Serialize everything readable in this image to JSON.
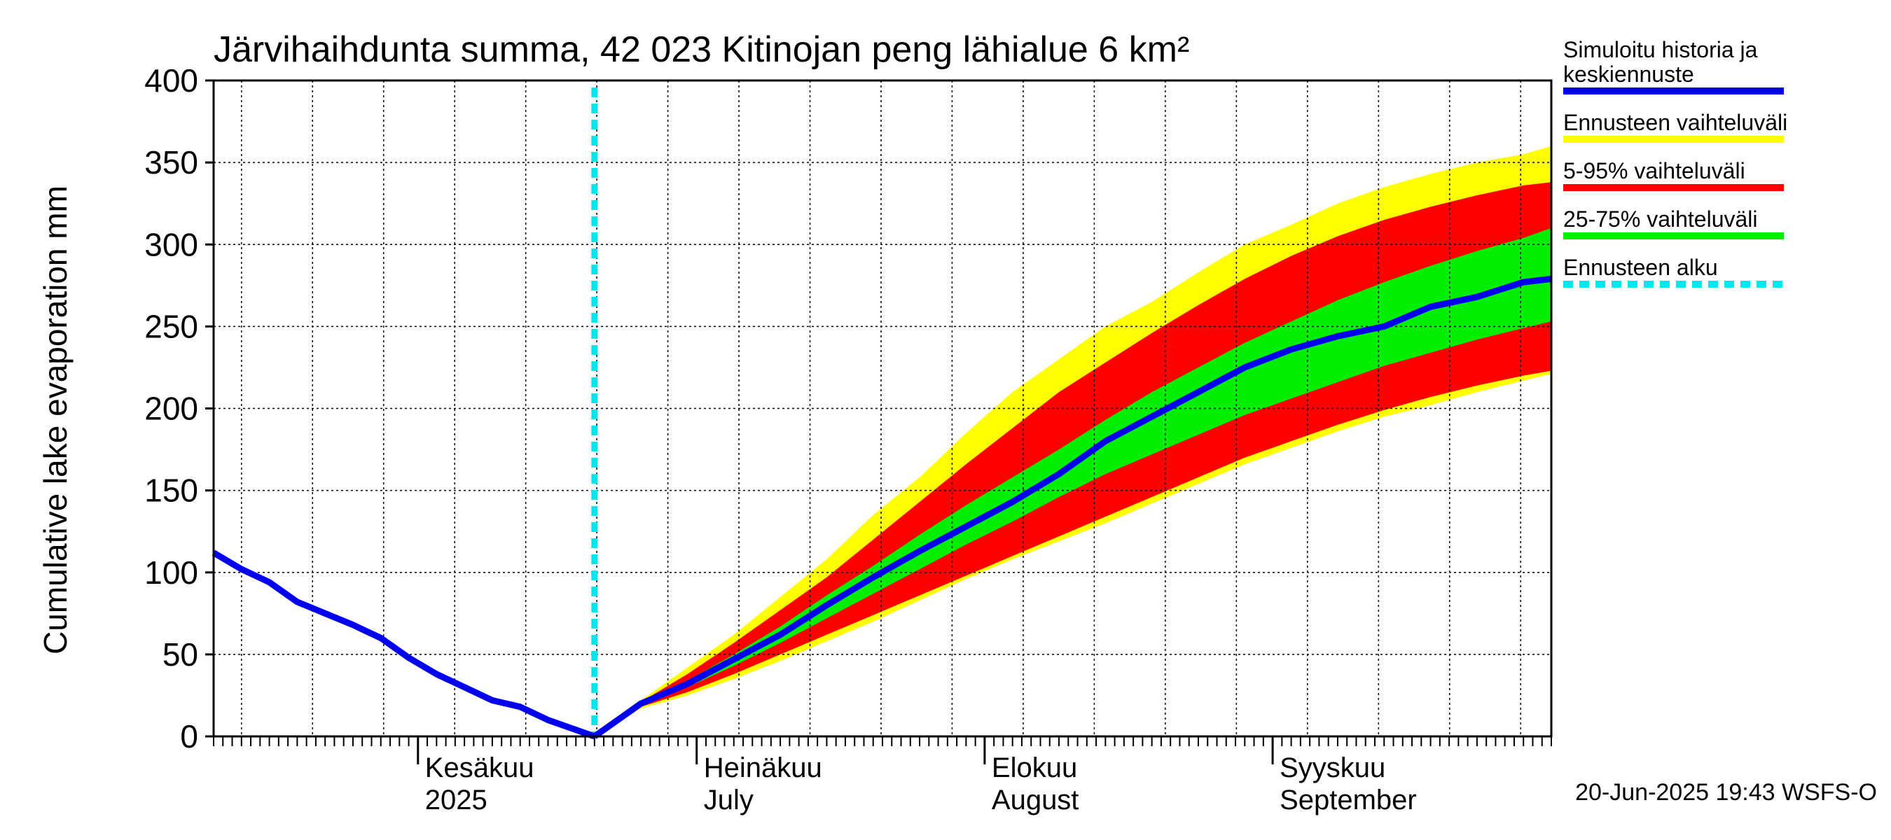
{
  "chart_data": {
    "type": "area",
    "title": "Järvihaihdunta summa, 42 023 Kitinojan peng lähialue 6 km²",
    "ylabel": "Cumulative lake evaporation   mm",
    "xlabel": "",
    "ylim": [
      0,
      400
    ],
    "yticks": [
      0,
      50,
      100,
      150,
      200,
      250,
      300,
      350,
      400
    ],
    "grid": true,
    "legend_position": "right",
    "x_unit": "day of year 2025",
    "xlim": [
      130,
      274
    ],
    "forecast_start": 171,
    "month_labels": [
      {
        "day": 152,
        "line1": "Kesäkuu",
        "line2": "2025"
      },
      {
        "day": 182,
        "line1": "Heinäkuu",
        "line2": "July"
      },
      {
        "day": 213,
        "line1": "Elokuu",
        "line2": "August"
      },
      {
        "day": 244,
        "line1": "Syyskuu",
        "line2": "September"
      }
    ],
    "legend": [
      {
        "label_lines": [
          "Simuloitu historia ja",
          "keskiennuste"
        ],
        "color": "#0000ee",
        "style": "solid"
      },
      {
        "label_lines": [
          "Ennusteen vaihteluväli"
        ],
        "color": "#ffff00",
        "style": "solid"
      },
      {
        "label_lines": [
          "5-95% vaihteluväli"
        ],
        "color": "#ff0000",
        "style": "solid"
      },
      {
        "label_lines": [
          "25-75% vaihteluväli"
        ],
        "color": "#00ee00",
        "style": "solid"
      },
      {
        "label_lines": [
          "Ennusteen alku"
        ],
        "color": "#00e5ee",
        "style": "dashed"
      }
    ],
    "history": {
      "x": [
        130,
        133,
        136,
        139,
        142,
        145,
        148,
        151,
        154,
        157,
        160,
        163,
        166,
        169,
        171
      ],
      "y": [
        112,
        102,
        94,
        82,
        75,
        68,
        60,
        48,
        38,
        30,
        22,
        18,
        10,
        4,
        0
      ]
    },
    "forecast": {
      "x": [
        171,
        176,
        181,
        186,
        191,
        196,
        201,
        206,
        211,
        216,
        221,
        226,
        231,
        236,
        241,
        246,
        251,
        256,
        261,
        266,
        271,
        274
      ],
      "median": [
        0,
        20,
        32,
        47,
        62,
        80,
        97,
        113,
        128,
        143,
        160,
        180,
        195,
        210,
        225,
        236,
        244,
        250,
        262,
        268,
        277,
        279
      ],
      "max": [
        0,
        22,
        42,
        62,
        85,
        108,
        135,
        158,
        185,
        210,
        230,
        250,
        265,
        283,
        300,
        312,
        325,
        335,
        343,
        350,
        355,
        360
      ],
      "p95": [
        0,
        21,
        38,
        57,
        77,
        97,
        120,
        143,
        166,
        188,
        210,
        228,
        246,
        263,
        279,
        293,
        305,
        315,
        323,
        330,
        336,
        338
      ],
      "p75": [
        0,
        20,
        34,
        50,
        67,
        86,
        104,
        123,
        141,
        158,
        175,
        193,
        210,
        225,
        240,
        253,
        266,
        277,
        287,
        296,
        304,
        310
      ],
      "p25": [
        0,
        19,
        30,
        43,
        57,
        72,
        87,
        102,
        117,
        131,
        146,
        160,
        172,
        184,
        196,
        206,
        216,
        226,
        234,
        242,
        249,
        253
      ],
      "p5": [
        0,
        18,
        27,
        38,
        50,
        62,
        74,
        86,
        98,
        110,
        122,
        134,
        146,
        158,
        170,
        180,
        190,
        199,
        207,
        214,
        220,
        223
      ],
      "min": [
        0,
        17,
        25,
        35,
        46,
        58,
        70,
        83,
        96,
        108,
        119,
        130,
        142,
        154,
        166,
        176,
        186,
        195,
        202,
        210,
        217,
        221
      ]
    }
  },
  "footer": {
    "timestamp": "20-Jun-2025 19:43 WSFS-O"
  }
}
